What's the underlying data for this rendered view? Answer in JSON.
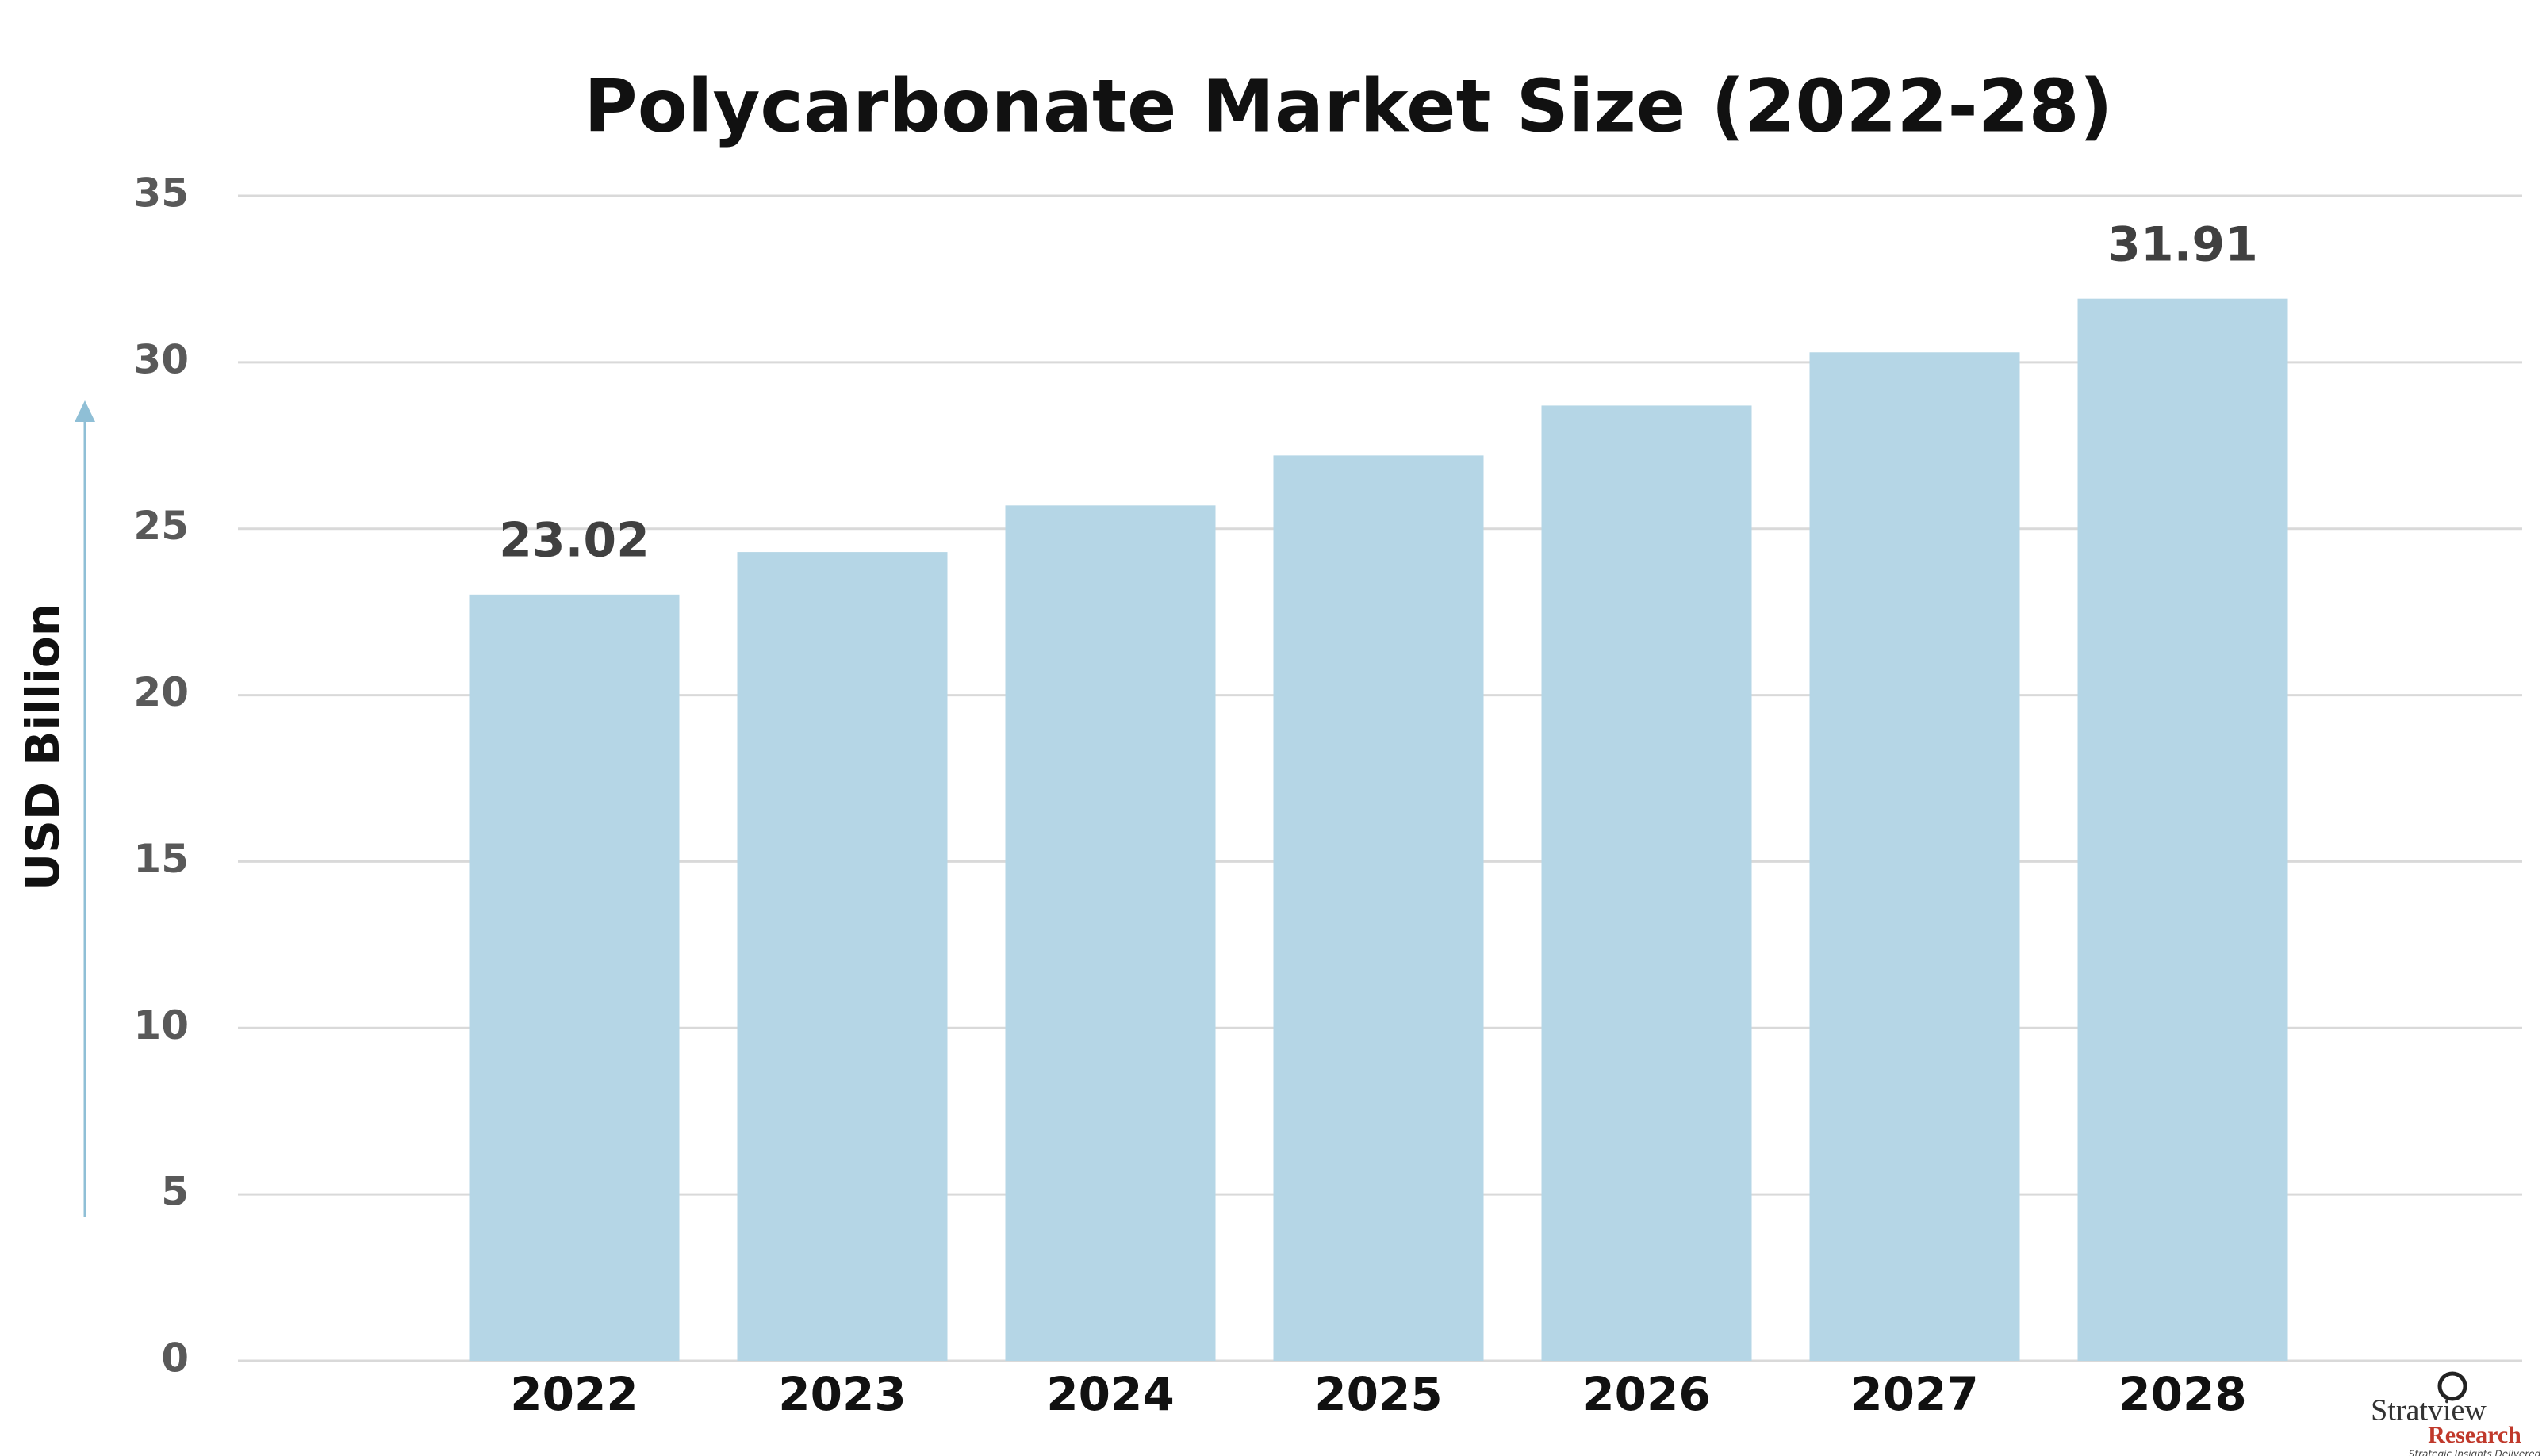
{
  "chart_data": {
    "type": "bar",
    "title": "Polycarbonate Market Size (2022-28)",
    "y_label": "USD Billion",
    "categories": [
      "2022",
      "2023",
      "2024",
      "2025",
      "2026",
      "2027",
      "2028"
    ],
    "values": [
      23.02,
      24.3,
      25.7,
      27.2,
      28.7,
      30.3,
      31.91
    ],
    "value_labels": [
      "23.02",
      null,
      null,
      null,
      null,
      null,
      "31.91"
    ],
    "color": "#b5d6e6",
    "ylim": [
      0,
      35
    ],
    "yticks": [
      0,
      5,
      10,
      15,
      20,
      25,
      30,
      35
    ],
    "grid": true
  },
  "logo": {
    "name": "Stratview",
    "sub": "Research",
    "tagline": "Strategic Insights Delivered"
  }
}
